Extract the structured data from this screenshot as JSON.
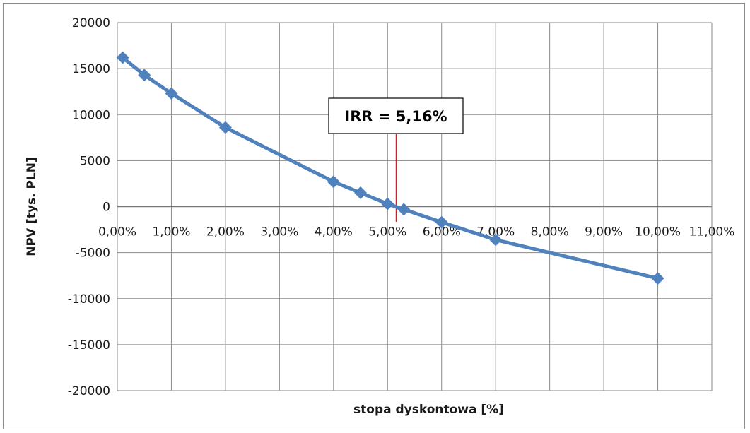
{
  "chart_data": {
    "type": "line",
    "xlabel": "stopa dyskontowa [%]",
    "ylabel": "NPV [tys. PLN]",
    "xlim": [
      0,
      11
    ],
    "ylim": [
      -20000,
      20000
    ],
    "x_ticks": [
      "0,00%",
      "1,00%",
      "2,00%",
      "3,00%",
      "4,00%",
      "5,00%",
      "6,00%",
      "7,00%",
      "8,00%",
      "9,00%",
      "10,00%",
      "11,00%"
    ],
    "y_ticks": [
      "20000",
      "15000",
      "10000",
      "5000",
      "0",
      "-5000",
      "-10000",
      "-15000",
      "-20000"
    ],
    "grid": true,
    "series": [
      {
        "color": "#4f81bd",
        "marker": "diamond",
        "points": [
          {
            "x": 0.1,
            "y": 16200
          },
          {
            "x": 0.5,
            "y": 14300
          },
          {
            "x": 1.0,
            "y": 12300
          },
          {
            "x": 2.0,
            "y": 8600
          },
          {
            "x": 4.0,
            "y": 2700
          },
          {
            "x": 4.5,
            "y": 1500
          },
          {
            "x": 5.0,
            "y": 300
          },
          {
            "x": 5.3,
            "y": -300
          },
          {
            "x": 6.0,
            "y": -1700
          },
          {
            "x": 7.0,
            "y": -3600
          },
          {
            "x": 10.0,
            "y": -7800
          }
        ]
      }
    ],
    "annotation": {
      "text": "IRR = 5,16%",
      "x": 5.16,
      "line_color": "#c0262d"
    }
  }
}
